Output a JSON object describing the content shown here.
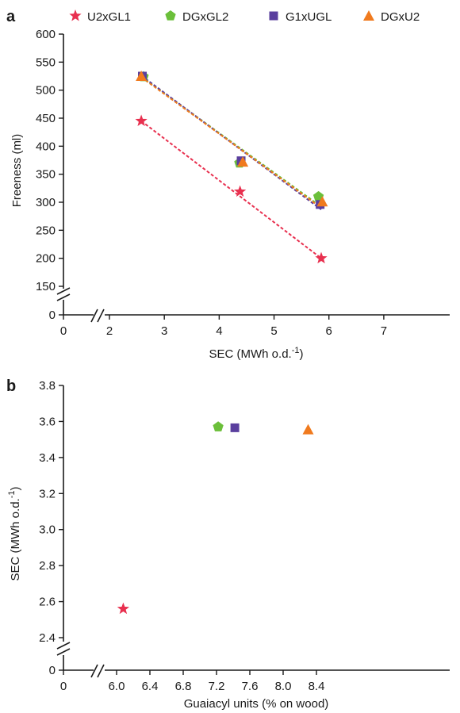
{
  "colors": {
    "U2xGL1": "#e8304f",
    "DGxGL2": "#6bbf3a",
    "G1xUGL": "#5a3f9e",
    "DGxU2": "#f07a1e",
    "axis": "#1a1a1a"
  },
  "chart_data": [
    {
      "panel": "a",
      "type": "scatter",
      "xlabel": "SEC (MWh o.d.",
      "xlabel_sup": "-1",
      "xlabel_end": ")",
      "ylabel": "Freeness (ml)",
      "xticks": [
        "0",
        "2",
        "3",
        "4",
        "5",
        "6",
        "7"
      ],
      "yticks": [
        "0",
        "150",
        "200",
        "250",
        "300",
        "350",
        "400",
        "450",
        "500",
        "550",
        "600"
      ],
      "xlim": [
        2,
        7
      ],
      "ylim": [
        150,
        600
      ],
      "x_axis_break": true,
      "y_axis_break": true,
      "legend_placement": "top",
      "grid": false,
      "series": [
        {
          "name": "U2xGL1",
          "marker": "star",
          "fit_line": true,
          "points": [
            [
              2.58,
              445
            ],
            [
              4.38,
              319
            ],
            [
              5.86,
              200
            ]
          ]
        },
        {
          "name": "DGxGL2",
          "marker": "pentagon",
          "fit_line": true,
          "points": [
            [
              2.62,
              524
            ],
            [
              4.37,
              370
            ],
            [
              5.81,
              310
            ]
          ]
        },
        {
          "name": "G1xUGL",
          "marker": "square",
          "fit_line": true,
          "points": [
            [
              2.6,
              525
            ],
            [
              4.4,
              374
            ],
            [
              5.84,
              296
            ]
          ]
        },
        {
          "name": "DGxU2",
          "marker": "triangle",
          "fit_line": true,
          "points": [
            [
              2.58,
              525
            ],
            [
              4.43,
              372
            ],
            [
              5.88,
              301
            ]
          ]
        }
      ],
      "fit_lines": [
        {
          "series": "U2xGL1",
          "from": [
            2.58,
            445
          ],
          "to": [
            5.86,
            200
          ]
        },
        {
          "series": "DGxGL2",
          "from": [
            2.58,
            524
          ],
          "to": [
            5.86,
            292
          ]
        },
        {
          "series": "G1xUGL",
          "from": [
            2.58,
            526
          ],
          "to": [
            5.86,
            287
          ]
        },
        {
          "series": "DGxU2",
          "from": [
            2.58,
            523
          ],
          "to": [
            5.86,
            290
          ]
        }
      ]
    },
    {
      "panel": "b",
      "type": "scatter",
      "xlabel": "Guaiacyl units (% on wood)",
      "ylabel": "SEC (MWh o.d.",
      "ylabel_sup": "-1",
      "ylabel_end": ")",
      "xticks": [
        "0",
        "6.0",
        "6.4",
        "6.8",
        "7.2",
        "7.6",
        "8.0",
        "8.4"
      ],
      "yticks": [
        "0",
        "2.4",
        "2.6",
        "2.8",
        "3.0",
        "3.2",
        "3.4",
        "3.6",
        "3.8"
      ],
      "xlim": [
        5.8,
        8.4
      ],
      "ylim": [
        2.4,
        3.8
      ],
      "x_axis_break": true,
      "y_axis_break": true,
      "grid": false,
      "series": [
        {
          "name": "U2xGL1",
          "marker": "star",
          "points": [
            [
              6.08,
              2.56
            ]
          ]
        },
        {
          "name": "DGxGL2",
          "marker": "pentagon",
          "points": [
            [
              7.22,
              3.57
            ]
          ]
        },
        {
          "name": "G1xUGL",
          "marker": "square",
          "points": [
            [
              7.42,
              3.565
            ]
          ]
        },
        {
          "name": "DGxU2",
          "marker": "triangle",
          "points": [
            [
              8.3,
              3.555
            ]
          ]
        }
      ]
    }
  ]
}
